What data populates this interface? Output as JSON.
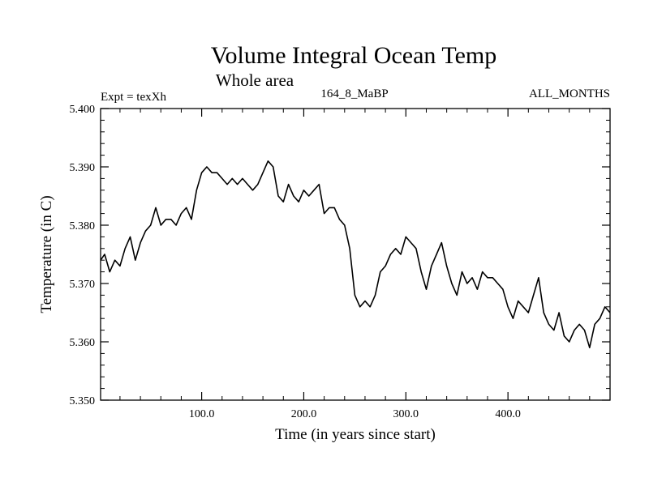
{
  "chart_data": {
    "type": "line",
    "title": "Volume Integral Ocean Temp",
    "subtitle": "Whole area",
    "expt_label": "Expt = texXh",
    "run_label": "164_8_MaBP",
    "months_label": "ALL_MONTHS",
    "xlabel": "Time (in years since start)",
    "ylabel": "Temperature (in C)",
    "xlim": [
      1,
      500
    ],
    "ylim": [
      5.35,
      5.4
    ],
    "xticks": [
      100,
      200,
      300,
      400
    ],
    "xtick_labels": [
      "100.0",
      "200.0",
      "300.0",
      "400.0"
    ],
    "yticks": [
      5.35,
      5.36,
      5.37,
      5.38,
      5.39,
      5.4
    ],
    "ytick_labels": [
      "5.350",
      "5.360",
      "5.370",
      "5.380",
      "5.390",
      "5.400"
    ],
    "series": [
      {
        "name": "Volume Integral Ocean Temp",
        "color": "#000000",
        "x": [
          1,
          5,
          10,
          15,
          20,
          25,
          30,
          35,
          40,
          45,
          50,
          55,
          60,
          65,
          70,
          75,
          80,
          85,
          90,
          95,
          100,
          105,
          110,
          115,
          120,
          125,
          130,
          135,
          140,
          145,
          150,
          155,
          160,
          165,
          170,
          175,
          180,
          185,
          190,
          195,
          200,
          205,
          210,
          215,
          220,
          225,
          230,
          235,
          240,
          245,
          250,
          255,
          260,
          265,
          270,
          275,
          280,
          285,
          290,
          295,
          300,
          305,
          310,
          315,
          320,
          325,
          330,
          335,
          340,
          345,
          350,
          355,
          360,
          365,
          370,
          375,
          380,
          385,
          390,
          395,
          400,
          405,
          410,
          415,
          420,
          425,
          430,
          435,
          440,
          445,
          450,
          455,
          460,
          465,
          470,
          475,
          480,
          485,
          490,
          495,
          500
        ],
        "values": [
          5.374,
          5.375,
          5.372,
          5.374,
          5.373,
          5.376,
          5.378,
          5.374,
          5.377,
          5.379,
          5.38,
          5.383,
          5.38,
          5.381,
          5.381,
          5.38,
          5.382,
          5.383,
          5.381,
          5.386,
          5.389,
          5.39,
          5.389,
          5.389,
          5.388,
          5.387,
          5.388,
          5.387,
          5.388,
          5.387,
          5.386,
          5.387,
          5.389,
          5.391,
          5.39,
          5.385,
          5.384,
          5.387,
          5.385,
          5.384,
          5.386,
          5.385,
          5.386,
          5.387,
          5.382,
          5.383,
          5.383,
          5.381,
          5.38,
          5.376,
          5.368,
          5.366,
          5.367,
          5.366,
          5.368,
          5.372,
          5.373,
          5.375,
          5.376,
          5.375,
          5.378,
          5.377,
          5.376,
          5.372,
          5.369,
          5.373,
          5.375,
          5.377,
          5.373,
          5.37,
          5.368,
          5.372,
          5.37,
          5.371,
          5.369,
          5.372,
          5.371,
          5.371,
          5.37,
          5.369,
          5.366,
          5.364,
          5.367,
          5.366,
          5.365,
          5.368,
          5.371,
          5.365,
          5.363,
          5.362,
          5.365,
          5.361,
          5.36,
          5.362,
          5.363,
          5.362,
          5.359,
          5.363,
          5.364,
          5.366,
          5.365
        ]
      }
    ]
  }
}
